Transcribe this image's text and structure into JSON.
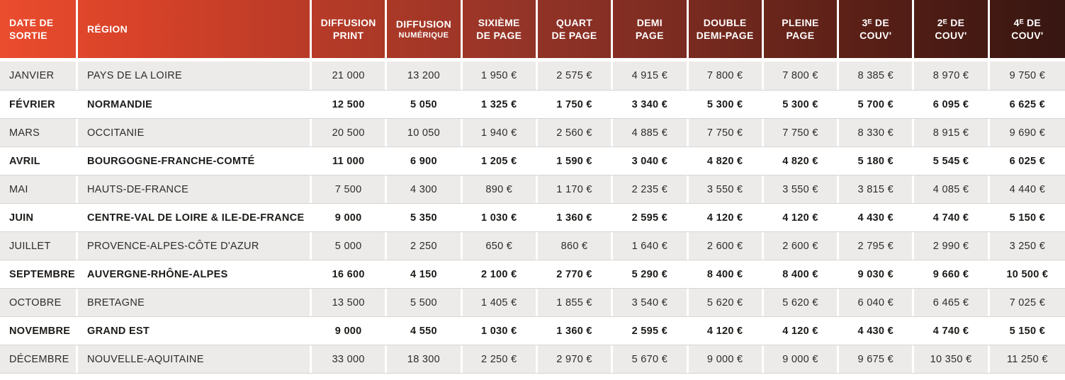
{
  "colors": {
    "header_gradient_start": "#ea4c2e",
    "header_gradient_end": "#371611",
    "header_text": "#ffffff",
    "row_alt_bg": "#edebe9",
    "row_bg": "#ffffff",
    "row_separator": "#d8d5d2",
    "body_text": "#2e2c29"
  },
  "table": {
    "columns": [
      {
        "id": "date-de-sortie",
        "line1": "DATE DE",
        "line2": "SORTIE"
      },
      {
        "id": "region",
        "line1": "RÉGION",
        "line2": ""
      },
      {
        "id": "diffusion-print",
        "line1": "DIFFUSION",
        "line2": "PRINT"
      },
      {
        "id": "diffusion-numerique",
        "line1": "DIFFUSION",
        "line2": "NUMÉRIQUE",
        "small2": true
      },
      {
        "id": "sixieme-de-page",
        "line1": "SIXIÈME",
        "line2": "DE PAGE"
      },
      {
        "id": "quart-de-page",
        "line1": "QUART",
        "line2": "DE PAGE"
      },
      {
        "id": "demi-page",
        "line1": "DEMI",
        "line2": "PAGE"
      },
      {
        "id": "double-demi-page",
        "line1": "DOUBLE",
        "line2": "DEMI-PAGE"
      },
      {
        "id": "pleine-page",
        "line1": "PLEINE",
        "line2": "PAGE"
      },
      {
        "id": "3e-de-couv",
        "line1": "3ᴱ DE",
        "line2": "COUV'"
      },
      {
        "id": "2e-de-couv",
        "line1": "2ᴱ DE",
        "line2": "COUV'"
      },
      {
        "id": "4e-de-couv",
        "line1": "4ᴱ DE",
        "line2": "COUV'"
      }
    ],
    "rows": [
      {
        "month": "JANVIER",
        "region": "PAYS DE LA LOIRE",
        "emphasis": false,
        "values": [
          "21 000",
          "13 200",
          "1 950 €",
          "2 575 €",
          "4 915 €",
          "7 800 €",
          "7 800 €",
          "8 385 €",
          "8 970 €",
          "9 750 €"
        ]
      },
      {
        "month": "FÉVRIER",
        "region": "NORMANDIE",
        "emphasis": true,
        "values": [
          "12 500",
          "5 050",
          "1 325 €",
          "1 750 €",
          "3 340 €",
          "5 300 €",
          "5 300 €",
          "5 700 €",
          "6 095 €",
          "6 625 €"
        ]
      },
      {
        "month": "MARS",
        "region": "OCCITANIE",
        "emphasis": false,
        "values": [
          "20 500",
          "10 050",
          "1 940 €",
          "2 560 €",
          "4 885 €",
          "7 750 €",
          "7 750 €",
          "8 330 €",
          "8 915 €",
          "9 690 €"
        ]
      },
      {
        "month": "AVRIL",
        "region": "BOURGOGNE-FRANCHE-COMTÉ",
        "emphasis": true,
        "values": [
          "11 000",
          "6 900",
          "1 205 €",
          "1 590 €",
          "3 040 €",
          "4 820 €",
          "4 820 €",
          "5 180 €",
          "5 545 €",
          "6 025 €"
        ]
      },
      {
        "month": "MAI",
        "region": "HAUTS-DE-FRANCE",
        "emphasis": false,
        "values": [
          "7 500",
          "4 300",
          "890 €",
          "1 170 €",
          "2 235 €",
          "3 550 €",
          "3 550 €",
          "3 815 €",
          "4 085 €",
          "4 440 €"
        ]
      },
      {
        "month": "JUIN",
        "region": "CENTRE-VAL DE LOIRE & ILE-DE-FRANCE",
        "emphasis": true,
        "values": [
          "9 000",
          "5 350",
          "1 030 €",
          "1 360 €",
          "2 595 €",
          "4 120 €",
          "4 120 €",
          "4 430 €",
          "4 740 €",
          "5 150 €"
        ]
      },
      {
        "month": "JUILLET",
        "region": "PROVENCE-ALPES-CÔTE D'AZUR",
        "emphasis": false,
        "values": [
          "5 000",
          "2 250",
          "650 €",
          "860 €",
          "1 640 €",
          "2 600 €",
          "2 600 €",
          "2 795 €",
          "2 990 €",
          "3 250 €"
        ]
      },
      {
        "month": "SEPTEMBRE",
        "region": "AUVERGNE-RHÔNE-ALPES",
        "emphasis": true,
        "values": [
          "16 600",
          "4 150",
          "2 100 €",
          "2 770 €",
          "5 290 €",
          "8 400 €",
          "8 400 €",
          "9 030 €",
          "9 660 €",
          "10 500 €"
        ]
      },
      {
        "month": "OCTOBRE",
        "region": "BRETAGNE",
        "emphasis": false,
        "values": [
          "13 500",
          "5 500",
          "1 405 €",
          "1 855 €",
          "3 540 €",
          "5 620 €",
          "5 620 €",
          "6 040 €",
          "6 465 €",
          "7 025 €"
        ]
      },
      {
        "month": "NOVEMBRE",
        "region": "GRAND EST",
        "emphasis": true,
        "values": [
          "9 000",
          "4 550",
          "1 030 €",
          "1 360 €",
          "2 595 €",
          "4 120 €",
          "4 120 €",
          "4 430 €",
          "4 740 €",
          "5 150 €"
        ]
      },
      {
        "month": "DÉCEMBRE",
        "region": "NOUVELLE-AQUITAINE",
        "emphasis": false,
        "values": [
          "33 000",
          "18 300",
          "2 250 €",
          "2 970 €",
          "5 670 €",
          "9 000 €",
          "9 000 €",
          "9 675 €",
          "10 350 €",
          "11 250 €"
        ]
      }
    ]
  }
}
